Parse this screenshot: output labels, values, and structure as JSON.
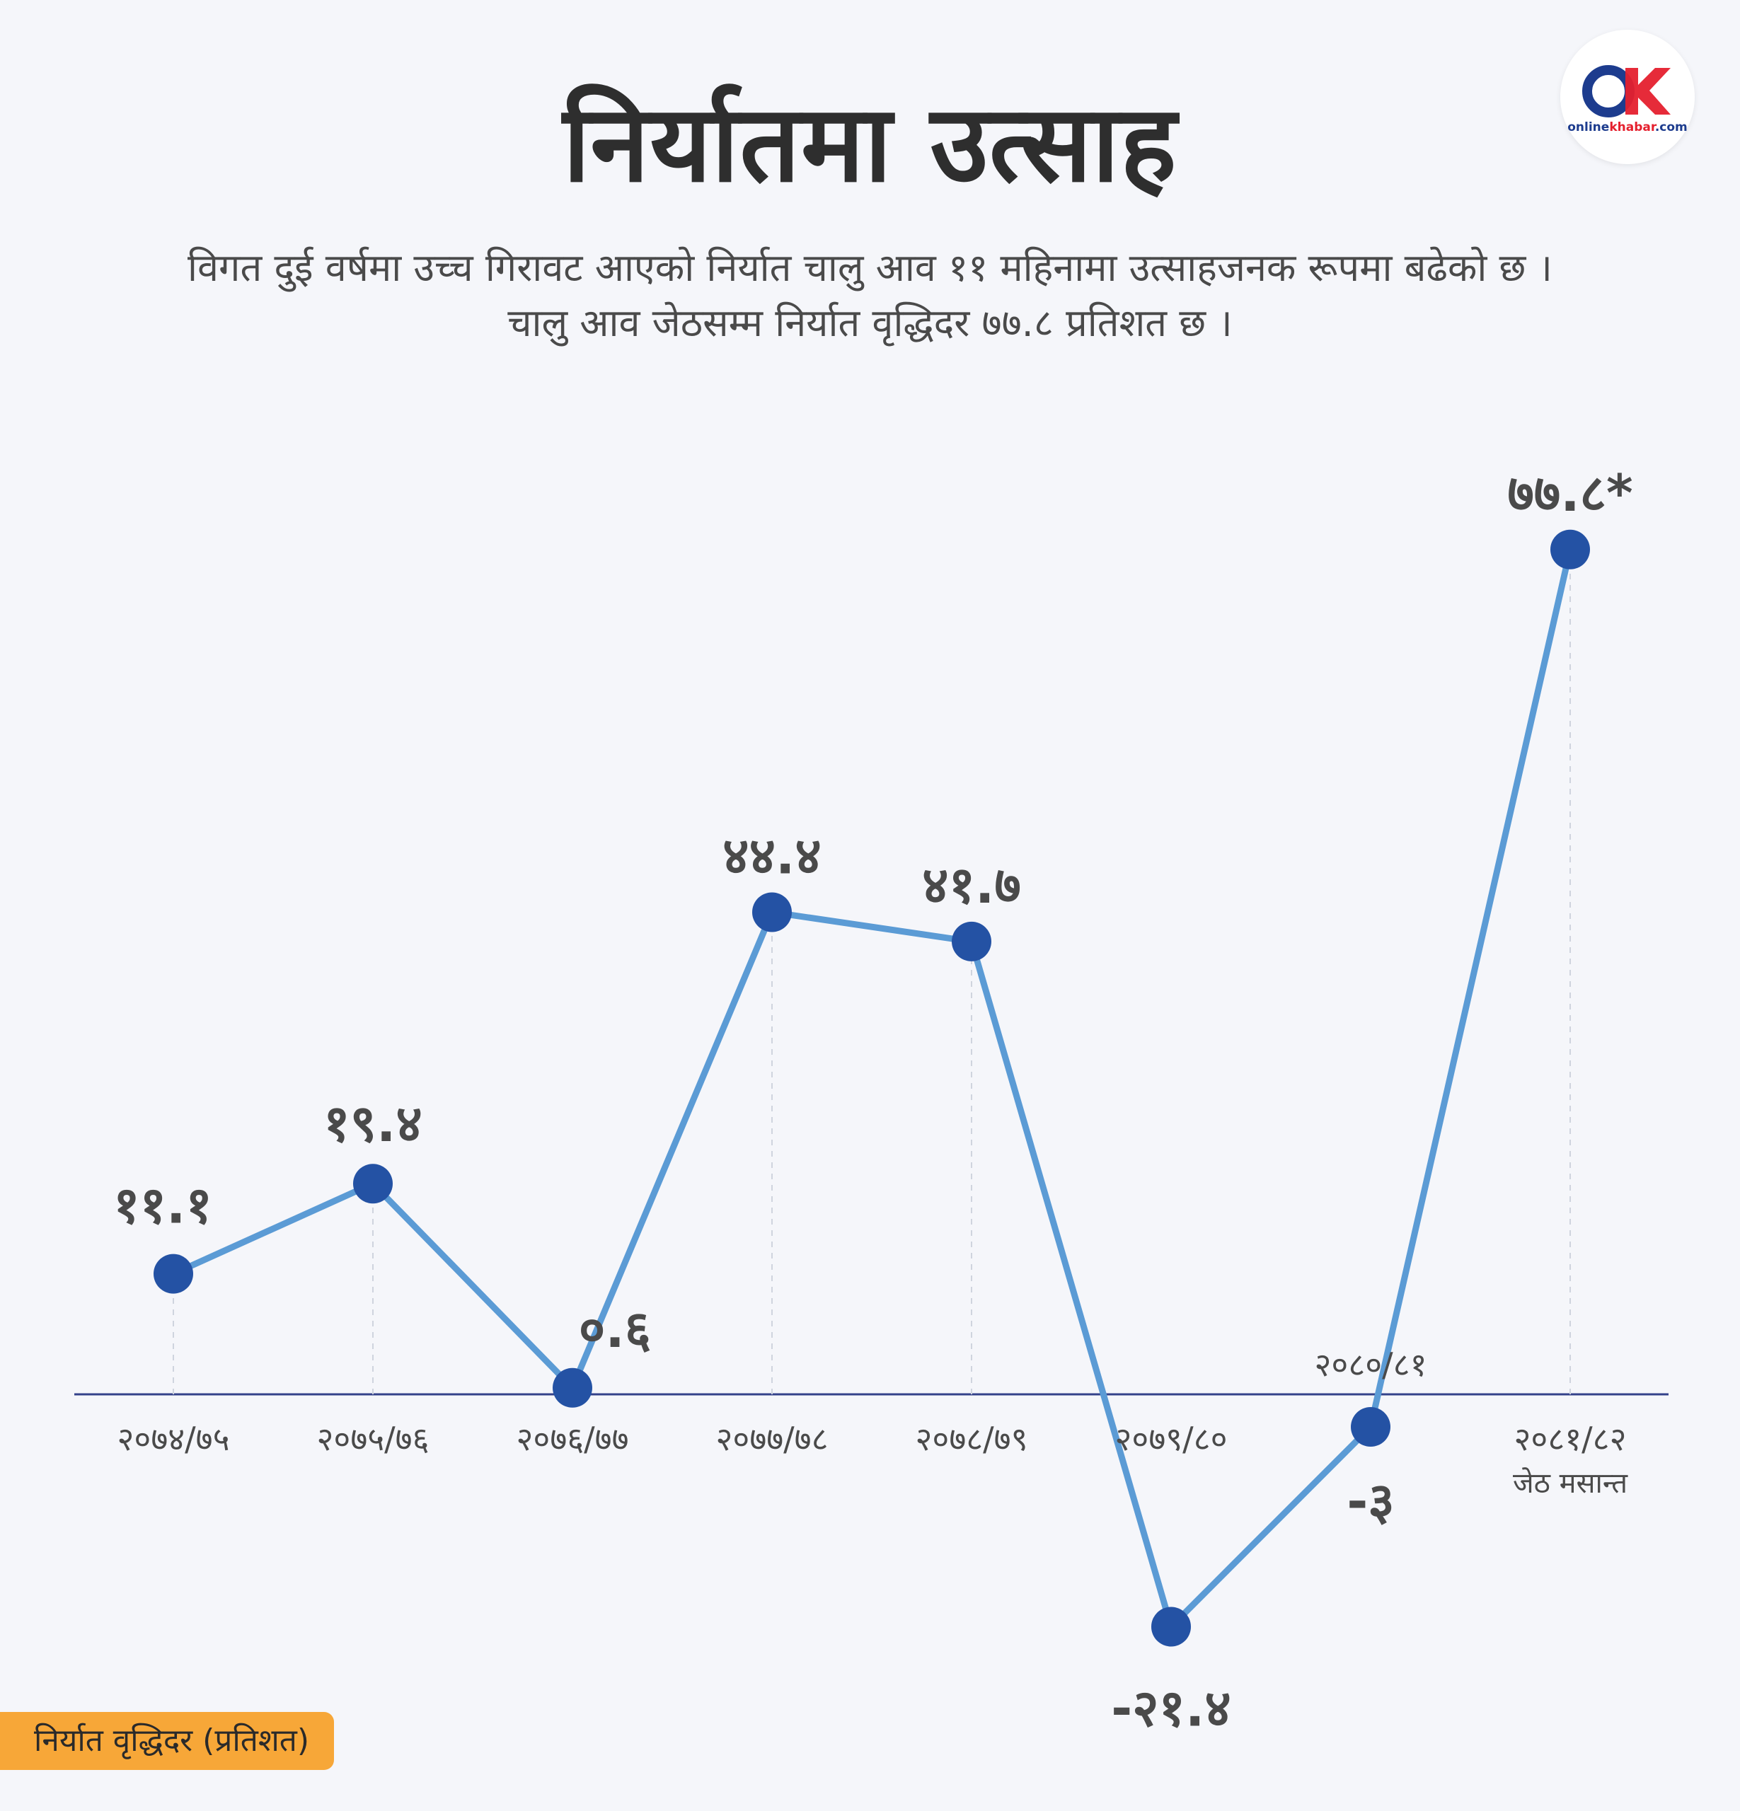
{
  "title": "निर्यातमा उत्साह",
  "subtitle_line1": "विगत दुई वर्षमा उच्च गिरावट आएको निर्यात चालु आव ११ महिनामा उत्साहजनक रूपमा बढेको छ ।",
  "subtitle_line2": "चालु आव जेठसम्म निर्यात वृद्धिदर ७७.८ प्रतिशत छ ।",
  "logo": {
    "brand_left": "online",
    "brand_right": "khabar",
    "domain": ".com",
    "colors": {
      "blue": "#1d3c8e",
      "red": "#e5202e"
    }
  },
  "legend": {
    "label": "निर्यात वृद्धिदर  (प्रतिशत)",
    "color": "#f7a738"
  },
  "colors": {
    "line": "#5b9bd5",
    "point": "#2452a4",
    "axis": "#33418a",
    "guide": "#cfd4de",
    "text": "#4a4a4a"
  },
  "chart_data": {
    "type": "line",
    "categories": [
      "२०७४/७५",
      "२०७५/७६",
      "२०७६/७७",
      "२०७७/७८",
      "२०७८/७९",
      "२०७९/८०",
      "२०८०/८१",
      "२०८१/८२"
    ],
    "category_notes": [
      "",
      "",
      "",
      "",
      "",
      "",
      "",
      "जेठ मसान्त"
    ],
    "values": [
      11.1,
      19.4,
      0.6,
      44.4,
      41.7,
      -21.4,
      -3,
      77.8
    ],
    "value_labels": [
      "११.१",
      "१९.४",
      "०.६",
      "४४.४",
      "४१.७",
      "-२१.४",
      "-३",
      "७७.८*"
    ],
    "ylim": [
      -25,
      85
    ],
    "grid": false,
    "legend_position": "bottom-left"
  }
}
